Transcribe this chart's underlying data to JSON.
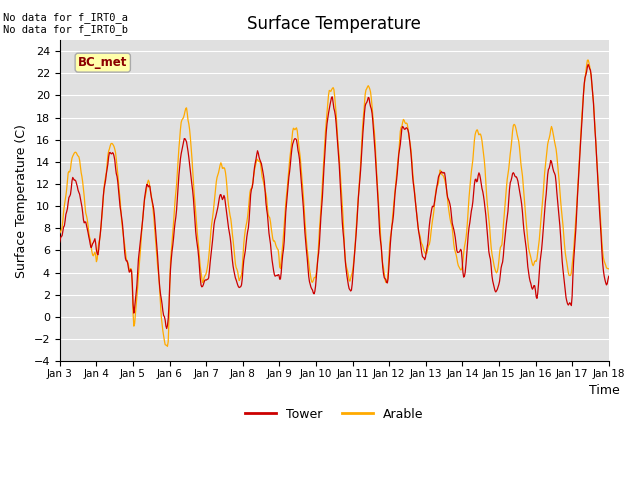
{
  "title": "Surface Temperature",
  "xlabel": "Time",
  "ylabel": "Surface Temperature (C)",
  "ylim": [
    -4,
    25
  ],
  "yticks": [
    -4,
    -2,
    0,
    2,
    4,
    6,
    8,
    10,
    12,
    14,
    16,
    18,
    20,
    22,
    24
  ],
  "tower_color": "#cc0000",
  "arable_color": "#ffaa00",
  "bg_color": "#e0e0e0",
  "annotation_text": "No data for f_IRT0_a\nNo data for f_IRT0_b",
  "legend_label_tower": "Tower",
  "legend_label_arable": "Arable",
  "bc_met_label": "BC_met",
  "x_tick_labels": [
    "Jan 3",
    "Jan 4",
    "Jan 5",
    "Jan 6",
    "Jan 7",
    "Jan 8",
    "Jan 9",
    "Jan 10",
    "Jan 11",
    "Jan 12",
    "Jan 13",
    "Jan 14",
    "Jan 15",
    "Jan 16",
    "Jan 17",
    "Jan 18"
  ],
  "figsize": [
    6.4,
    4.8
  ],
  "dpi": 100,
  "tower_peaks": [
    12,
    15,
    12,
    16,
    11,
    14.5,
    16,
    20,
    20,
    17.5,
    13,
    13,
    13,
    14,
    23,
    19
  ],
  "tower_troughs": [
    6.5,
    4,
    -1,
    3,
    2.5,
    4,
    2,
    2.5,
    3,
    5.5,
    6,
    2,
    2.5,
    0.5,
    3,
    1.5
  ],
  "arable_peaks": [
    15,
    16,
    12,
    19,
    14,
    14,
    17,
    21,
    21,
    18,
    13,
    17,
    17,
    17,
    23,
    19.5
  ],
  "arable_troughs": [
    6.5,
    4,
    -2.5,
    3.5,
    3.5,
    6.5,
    3,
    3,
    3,
    6,
    4.5,
    4,
    4.5,
    4,
    4,
    2
  ]
}
